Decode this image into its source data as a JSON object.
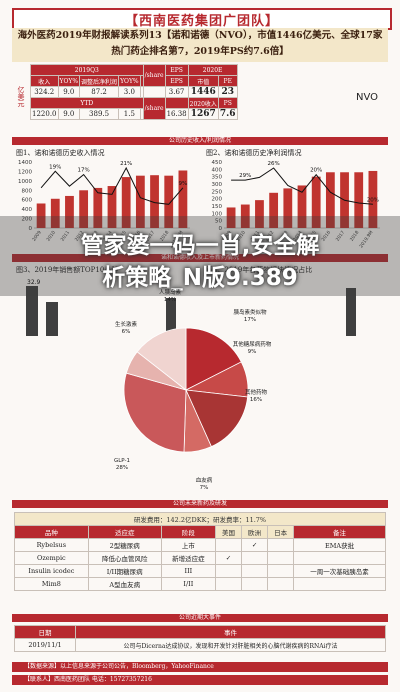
{
  "header": {
    "title": "【西南医药集团广团队】"
  },
  "subheader": {
    "line1": "海外医药2019年财报解读系列13【诺和诺德（NVO），市值1446亿美元、全球17家",
    "line2": "热门药企排名第7，2019年PS约7.6倍】"
  },
  "sidebar_label": "亿美元",
  "kpi": {
    "row1_heads": [
      "2019Q3",
      "",
      "",
      "",
      "",
      "EPS",
      "",
      "2020E"
    ],
    "col_heads": [
      "收入",
      "YOY%",
      "调整后净利润",
      "YOY%",
      "",
      "EPS",
      "市值",
      "PE"
    ],
    "q3": [
      "324.2",
      "9.0",
      "87.2",
      "3.0",
      "3.67",
      "1446",
      "23"
    ],
    "ytd_label": "YTD",
    "ytd_heads": [
      "",
      "",
      "",
      "",
      "",
      "",
      "2020收入",
      "PS"
    ],
    "ytd": [
      "1220.0",
      "9.0",
      "389.5",
      "1.5",
      "16.38",
      "1267",
      "7.6"
    ],
    "share_label": "/share",
    "ticker": "NVO"
  },
  "bands": {
    "b1": "公司历史收入/利润情况",
    "b2": "诺和诺德收入及上市新药情况",
    "b3": "公司未来新药及研发",
    "b4": "公司近期大事件"
  },
  "fig1": {
    "title": "图1、诺和诺德历史收入情况"
  },
  "fig2": {
    "title": "图2、诺和诺德历史净利润情况"
  },
  "fig3": {
    "title": "图3、2019年销售额TOP10品种"
  },
  "fig4": {
    "title": "图4、2019年各药物板块情况占比"
  },
  "chart_data": [
    {
      "type": "bar",
      "title": "图1、诺和诺德历史收入情况",
      "categories": [
        "2009",
        "2010",
        "2011",
        "2012",
        "2013",
        "2014",
        "2015",
        "2016",
        "2017",
        "2018",
        "2019.9M"
      ],
      "values": [
        520,
        620,
        680,
        800,
        850,
        890,
        1080,
        1110,
        1120,
        1110,
        1220
      ],
      "line_values": [
        9,
        19,
        10,
        17,
        6,
        5,
        21,
        3,
        0,
        -1,
        9
      ],
      "line_labels": [
        "19%",
        "17%",
        "21%",
        "9%"
      ],
      "ylim": [
        0,
        1400
      ],
      "yticks": [
        "0",
        "200",
        "400",
        "600",
        "800",
        "1000",
        "1200",
        "1400"
      ]
    },
    {
      "type": "bar",
      "title": "图2、诺和诺德历史净利润情况",
      "categories": [
        "2009",
        "2010",
        "2011",
        "2012",
        "2013",
        "2014",
        "2015",
        "2016",
        "2017",
        "2018",
        "2019.9M"
      ],
      "values": [
        140,
        160,
        190,
        240,
        270,
        290,
        350,
        380,
        380,
        380,
        389
      ],
      "line_values": [
        17,
        17,
        19,
        26,
        13,
        8,
        21,
        8,
        2,
        0,
        -1
      ],
      "line_labels": [
        "29%",
        "26%",
        "20%",
        "20%"
      ],
      "ylim": [
        0,
        450
      ],
      "yticks": [
        "0",
        "50",
        "100",
        "150",
        "200",
        "250",
        "300",
        "350",
        "400",
        "450"
      ]
    },
    {
      "type": "pie",
      "title": "图4、2019年各药物板块情况占比",
      "labels": [
        "17%",
        "9%",
        "16%",
        "7%",
        "28%",
        "6%",
        "14%"
      ],
      "values": [
        17,
        9,
        16,
        7,
        28,
        6,
        14
      ]
    }
  ],
  "fig3_labels": {
    "top": "32.9"
  },
  "pie_labels": {
    "a": "胰岛素类似物",
    "b": "其他糖尿病药物",
    "c": "其他药物",
    "d": "血友病",
    "e": "GLP-1",
    "f": "生长激素",
    "g": "人胰岛素",
    "pa": "17%",
    "pb": "9%",
    "pc": "16%",
    "pd": "7%",
    "pe": "28%",
    "pf": "6%",
    "pg": "14%"
  },
  "watermark": {
    "line1": "管家婆一码一肖,安全解",
    "line2": "析策略_N版9.389"
  },
  "pipeline": {
    "bar": "研发费用：142.2亿DKK；研发费率：11.7%",
    "heads": [
      "品种",
      "适应症",
      "阶段",
      "美国",
      "欧洲",
      "日本",
      "备注"
    ],
    "rows": [
      [
        "Rybelsus",
        "2型糖尿病",
        "上市",
        "",
        "✓",
        "",
        "EMA获批"
      ],
      [
        "Ozempic",
        "降低心血管风险",
        "新增适应症",
        "✓",
        "",
        "",
        ""
      ],
      [
        "Insulin icodec",
        "I/II期糖尿病",
        "III",
        "",
        "",
        "",
        "一周一次基础胰岛素"
      ],
      [
        "Mim8",
        "A型血友病",
        "I/II",
        "",
        "",
        "",
        ""
      ]
    ]
  },
  "events": {
    "heads": [
      "日期",
      "事件"
    ],
    "rows": [
      [
        "2019/11/1",
        "公司与Dicerna达成协议，发现和开发针对肝脏相关的心脑代谢疾病的RNAi疗法"
      ]
    ]
  },
  "footer": {
    "line1": "【数据来源】以上信息来源于公司公告，Bloomberg，YahooFinance",
    "line2": "【联系人】西南医药团队 电话：15727357216"
  }
}
